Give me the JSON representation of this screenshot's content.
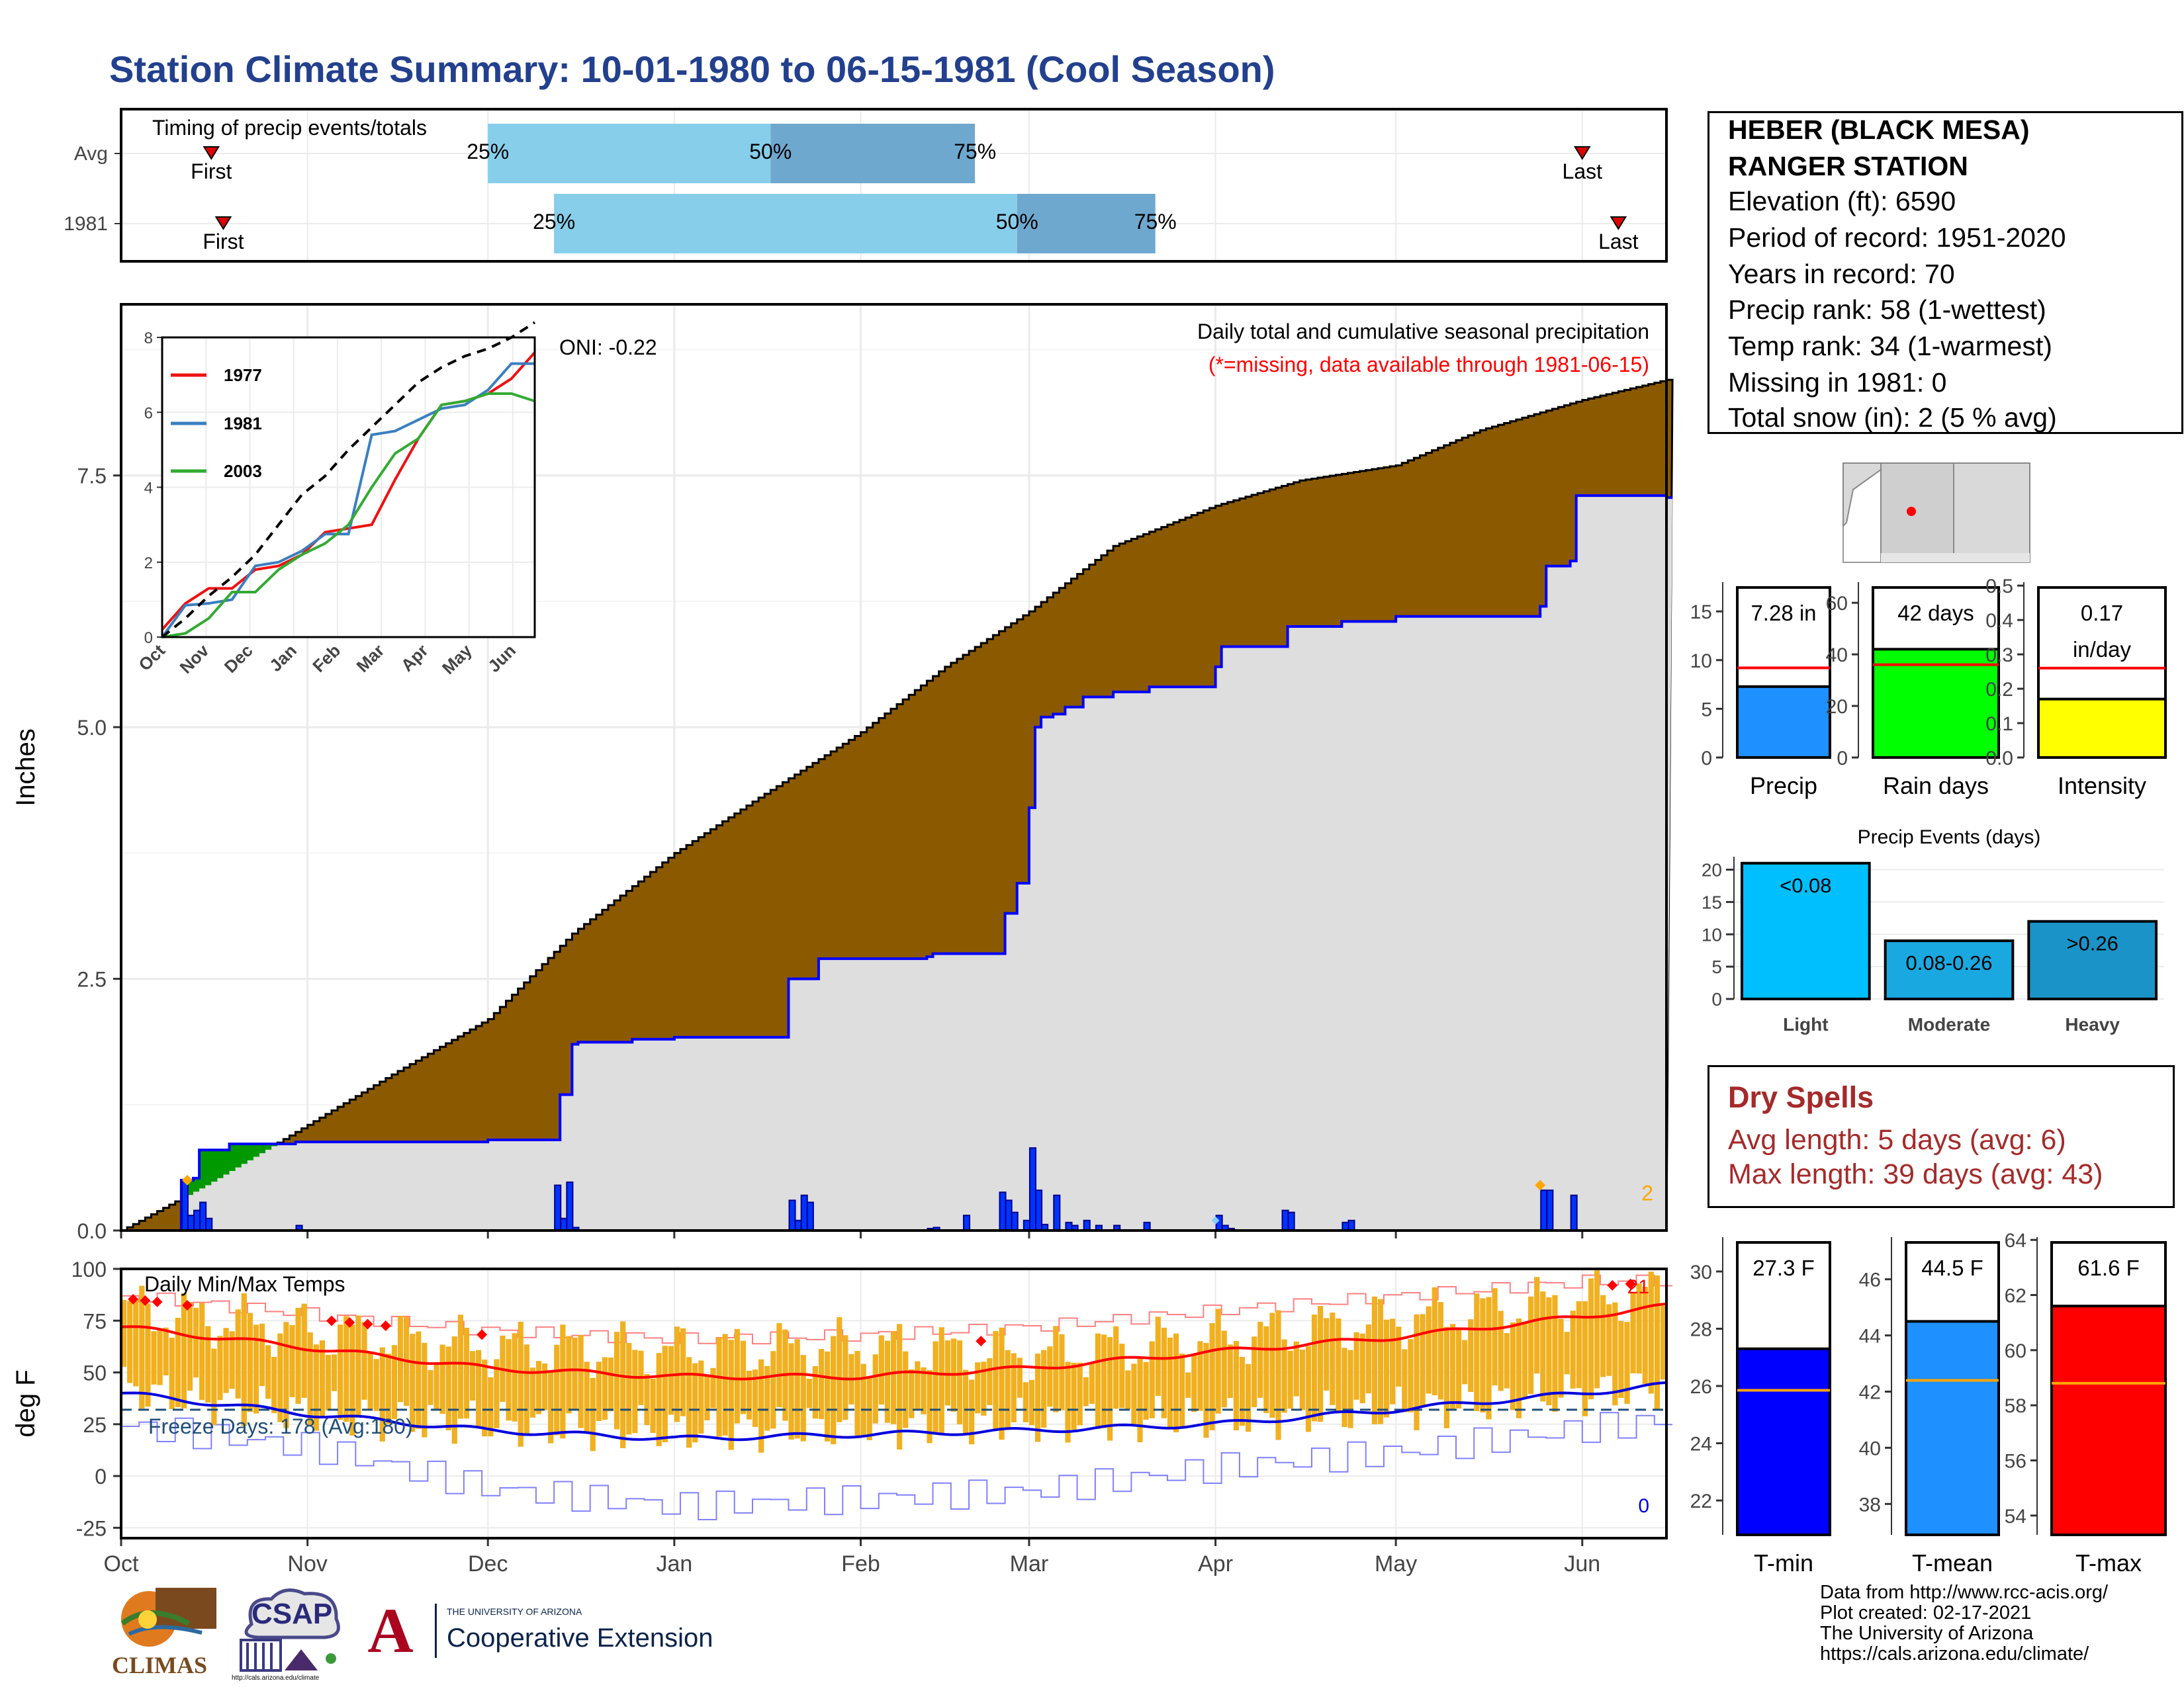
{
  "title": "Station Climate Summary: 10-01-1980 to 06-15-1981 (Cool Season)",
  "station": {
    "name_line1": "HEBER (BLACK MESA)",
    "name_line2": "RANGER STATION",
    "elevation": "Elevation (ft): 6590",
    "period": "Period of record: 1951-2020",
    "years": "Years in record: 70",
    "precip_rank": "Precip rank: 58 (1-wettest)",
    "temp_rank": "Temp rank: 34 (1-warmest)",
    "missing": "Missing in 1981: 0",
    "snow": "Total snow (in): 2 (5 % avg)"
  },
  "dry_spells": {
    "title": "Dry Spells",
    "avg": "Avg length: 5 days (avg: 6)",
    "max": "Max length: 39 days (avg: 43)"
  },
  "credits": {
    "line1": "Data from http://www.rcc-acis.org/",
    "line2": "Plot created: 02-17-2021",
    "line3": "The University of Arizona",
    "line4": "https://cals.arizona.edu/climate/"
  },
  "logos": {
    "climas": "CLIMAS",
    "csap": "CSAP",
    "csap_url": "http://cals.arizona.edu/climate",
    "ua_small": "THE UNIVERSITY OF ARIZONA",
    "ua_big": "Cooperative Extension",
    "ua_letter": "A"
  },
  "colors": {
    "title": "#23408e",
    "avg_cum": "#8b5a00",
    "obs_cum": "#0000ff",
    "obs_fill": "#dedede",
    "band_light": "#87ceeb",
    "band_dark": "#6fa8cf",
    "temp_bars": "#f0b020",
    "tmax_line": "#ff0000",
    "tmin_line": "#0000dd",
    "dry": "#a52a2a"
  },
  "chart_data": [
    {
      "id": "timing",
      "type": "range_bar",
      "title": "Timing of precip events/totals",
      "rows": [
        {
          "label": "Avg",
          "first": "1980-10-16",
          "q25": "1980-12-01",
          "q50": "1981-01-17",
          "q75": "1981-02-20",
          "last": "1981-06-01",
          "first_label": "First",
          "q25_label": "25%",
          "q50_label": "50%",
          "q75_label": "75%",
          "last_label": "Last"
        },
        {
          "label": "1981",
          "first": "1980-10-18",
          "q25": "1980-12-12",
          "q50": "1981-02-27",
          "q75": "1981-03-22",
          "last": "1981-06-07",
          "first_label": "First",
          "q25_label": "25%",
          "q50_label": "50%",
          "q75_label": "75%",
          "last_label": "Last"
        }
      ]
    },
    {
      "id": "precip",
      "type": "area",
      "title": "Daily total and cumulative seasonal precipitation",
      "subtitle": "(*=missing, data available through 1981-06-15)",
      "annotation": "ONI: -0.22",
      "ylabel": "Inches",
      "ylim": [
        0,
        9.2
      ],
      "yticks": [
        0.0,
        2.5,
        5.0,
        7.5
      ],
      "ytick_labels": [
        "0.0",
        "2.5",
        "5.0",
        "7.5"
      ],
      "snow_total_label": "2",
      "avg_cumulative": {
        "dates": [
          "1980-10-01",
          "1980-10-15",
          "1980-11-01",
          "1980-11-15",
          "1980-12-01",
          "1980-12-15",
          "1981-01-01",
          "1981-01-15",
          "1981-02-01",
          "1981-02-15",
          "1981-03-01",
          "1981-03-15",
          "1981-04-01",
          "1981-04-15",
          "1981-05-01",
          "1981-05-15",
          "1981-06-01",
          "1981-06-15"
        ],
        "values": [
          0.0,
          0.45,
          1.05,
          1.55,
          2.1,
          2.95,
          3.75,
          4.3,
          4.95,
          5.6,
          6.15,
          6.8,
          7.2,
          7.45,
          7.6,
          7.95,
          8.25,
          8.45
        ]
      },
      "obs_cumulative": {
        "dates": [
          "1980-10-01",
          "1980-10-10",
          "1980-10-11",
          "1980-10-13",
          "1980-10-14",
          "1980-10-15",
          "1980-10-18",
          "1980-10-19",
          "1980-10-30",
          "1980-11-30",
          "1980-12-01",
          "1980-12-12",
          "1980-12-13",
          "1980-12-14",
          "1980-12-15",
          "1980-12-16",
          "1980-12-25",
          "1981-01-01",
          "1981-01-02",
          "1981-01-20",
          "1981-01-25",
          "1981-02-01",
          "1981-02-12",
          "1981-02-13",
          "1981-02-24",
          "1981-02-25",
          "1981-02-27",
          "1981-03-01",
          "1981-03-02",
          "1981-03-03",
          "1981-03-05",
          "1981-03-07",
          "1981-03-10",
          "1981-03-15",
          "1981-03-20",
          "1981-03-21",
          "1981-03-31",
          "1981-04-01",
          "1981-04-02",
          "1981-04-12",
          "1981-04-13",
          "1981-04-21",
          "1981-04-22",
          "1981-05-01",
          "1981-05-02",
          "1981-05-25",
          "1981-05-26",
          "1981-05-30",
          "1981-05-31",
          "1981-06-15"
        ],
        "values": [
          0.0,
          0.0,
          0.5,
          0.52,
          0.8,
          0.8,
          0.8,
          0.86,
          0.88,
          0.88,
          0.9,
          0.9,
          1.35,
          1.35,
          1.85,
          1.87,
          1.9,
          1.92,
          1.92,
          2.5,
          2.7,
          2.7,
          2.72,
          2.75,
          2.75,
          3.15,
          3.45,
          4.2,
          5.0,
          5.1,
          5.13,
          5.2,
          5.3,
          5.35,
          5.35,
          5.4,
          5.4,
          5.6,
          5.8,
          5.8,
          6.0,
          6.0,
          6.05,
          6.1,
          6.1,
          6.2,
          6.6,
          6.65,
          7.3,
          7.28
        ]
      },
      "daily_precip": {
        "dates": [
          "1980-10-11",
          "1980-10-12",
          "1980-10-13",
          "1980-10-14",
          "1980-10-15",
          "1980-10-30",
          "1980-12-12",
          "1980-12-13",
          "1980-12-14",
          "1980-12-15",
          "1981-01-20",
          "1981-01-21",
          "1981-01-22",
          "1981-01-23",
          "1981-02-12",
          "1981-02-13",
          "1981-02-18",
          "1981-02-24",
          "1981-02-25",
          "1981-02-26",
          "1981-02-28",
          "1981-03-01",
          "1981-03-02",
          "1981-03-03",
          "1981-03-05",
          "1981-03-07",
          "1981-03-08",
          "1981-03-10",
          "1981-03-12",
          "1981-03-15",
          "1981-03-20",
          "1981-04-01",
          "1981-04-02",
          "1981-04-03",
          "1981-04-12",
          "1981-04-13",
          "1981-04-22",
          "1981-04-23",
          "1981-05-25",
          "1981-05-26",
          "1981-05-30"
        ],
        "values": [
          0.5,
          0.15,
          0.2,
          0.28,
          0.12,
          0.05,
          0.45,
          0.12,
          0.48,
          0.03,
          0.3,
          0.1,
          0.35,
          0.28,
          0.02,
          0.03,
          0.15,
          0.38,
          0.3,
          0.18,
          0.1,
          0.82,
          0.4,
          0.06,
          0.35,
          0.08,
          0.05,
          0.1,
          0.05,
          0.05,
          0.08,
          0.15,
          0.05,
          0.02,
          0.2,
          0.18,
          0.08,
          0.1,
          0.4,
          0.4,
          0.35
        ]
      },
      "x_months": [
        "Oct",
        "Nov",
        "Dec",
        "Jan",
        "Feb",
        "Mar",
        "Apr",
        "May",
        "Jun"
      ]
    },
    {
      "id": "inset",
      "type": "line",
      "ylim": [
        0,
        8
      ],
      "yticks": [
        0,
        2,
        4,
        6,
        8
      ],
      "xtick_labels": [
        "Oct",
        "Nov",
        "Dec",
        "Jan",
        "Feb",
        "Mar",
        "Apr",
        "May",
        "Jun"
      ],
      "series": [
        {
          "name": "1977",
          "color": "#ee1111",
          "values": [
            0.2,
            0.9,
            1.3,
            1.3,
            1.8,
            1.9,
            2.2,
            2.8,
            2.9,
            3.0,
            4.2,
            5.3,
            6.2,
            6.3,
            6.5,
            6.9,
            7.6
          ]
        },
        {
          "name": "1981",
          "color": "#3a7fc0",
          "values": [
            0.0,
            0.85,
            0.9,
            1.0,
            1.9,
            2.0,
            2.3,
            2.75,
            2.75,
            5.4,
            5.5,
            5.8,
            6.1,
            6.2,
            6.6,
            7.3,
            7.3
          ]
        },
        {
          "name": "2003",
          "color": "#33aa33",
          "values": [
            0.0,
            0.1,
            0.5,
            1.2,
            1.2,
            1.8,
            2.2,
            2.5,
            3.0,
            4.0,
            4.9,
            5.3,
            6.2,
            6.3,
            6.5,
            6.5,
            6.3
          ]
        },
        {
          "name": "",
          "color": "#000000",
          "dashed": true,
          "values": [
            0.0,
            0.5,
            1.1,
            1.6,
            2.2,
            3.0,
            3.8,
            4.3,
            5.0,
            5.6,
            6.2,
            6.8,
            7.2,
            7.5,
            7.7,
            8.0,
            8.4
          ]
        }
      ]
    },
    {
      "id": "temps",
      "type": "line",
      "title": "Daily Min/Max Temps",
      "freeze_label": "Freeze Days: 178 (Avg:180)",
      "ylabel": "deg F",
      "ylim": [
        -30,
        100
      ],
      "yticks": [
        -25,
        0,
        25,
        50,
        75,
        100
      ],
      "ytick_labels": [
        "-25",
        "0",
        "25",
        "50",
        "75",
        "100"
      ],
      "freeze_line": 32,
      "record_high_count": "21",
      "record_low_count": "0",
      "x_months": [
        "Oct",
        "Nov",
        "Dec",
        "Jan",
        "Feb",
        "Mar",
        "Apr",
        "May",
        "Jun"
      ],
      "avg_tmax": {
        "dates": [
          "1980-10-01",
          "1980-11-01",
          "1980-12-01",
          "1981-01-01",
          "1981-02-01",
          "1981-03-01",
          "1981-04-01",
          "1981-05-01",
          "1981-06-01",
          "1981-06-15"
        ],
        "values": [
          72,
          62,
          52,
          48,
          48,
          52,
          60,
          67,
          77,
          82
        ]
      },
      "avg_tmin": {
        "dates": [
          "1980-10-01",
          "1980-11-01",
          "1980-12-01",
          "1981-01-01",
          "1981-02-01",
          "1981-03-01",
          "1981-04-01",
          "1981-05-01",
          "1981-06-01",
          "1981-06-15"
        ],
        "values": [
          40,
          30,
          22,
          18,
          20,
          22,
          25,
          32,
          40,
          44
        ]
      },
      "record_high": {
        "dates": [
          "1980-10-01",
          "1980-11-01",
          "1980-12-01",
          "1981-01-01",
          "1981-02-01",
          "1981-03-01",
          "1981-04-01",
          "1981-05-01",
          "1981-06-01",
          "1981-06-15"
        ],
        "values": [
          87,
          78,
          70,
          66,
          68,
          72,
          80,
          87,
          94,
          95
        ]
      },
      "record_low": {
        "dates": [
          "1980-10-01",
          "1980-11-01",
          "1980-12-01",
          "1981-01-01",
          "1981-02-01",
          "1981-03-01",
          "1981-04-01",
          "1981-05-01",
          "1981-06-01",
          "1981-06-15"
        ],
        "values": [
          20,
          10,
          -10,
          -18,
          -14,
          -10,
          2,
          10,
          22,
          26
        ]
      },
      "obs_tmax": {
        "dates": [
          "1980-10-01",
          "1980-11-01",
          "1980-12-01",
          "1981-01-01",
          "1981-02-01",
          "1981-03-01",
          "1981-04-01",
          "1981-05-01",
          "1981-06-01",
          "1981-06-15"
        ],
        "values": [
          80,
          70,
          62,
          60,
          62,
          58,
          66,
          75,
          85,
          88
        ]
      },
      "obs_tmin": {
        "dates": [
          "1980-10-01",
          "1980-11-01",
          "1980-12-01",
          "1981-01-01",
          "1981-02-01",
          "1981-03-01",
          "1981-04-01",
          "1981-05-01",
          "1981-06-01",
          "1981-06-15"
        ],
        "values": [
          42,
          30,
          25,
          22,
          24,
          26,
          28,
          32,
          40,
          44
        ]
      }
    },
    {
      "id": "precip_totals",
      "type": "bar",
      "panels": [
        {
          "name": "Precip",
          "value": 7.28,
          "avg": 9.2,
          "label": "7.28 in",
          "ylim": [
            0,
            18
          ],
          "yticks": [
            0,
            5,
            10,
            15
          ],
          "color": "#1e90ff"
        },
        {
          "name": "Rain days",
          "value": 42,
          "avg": 36,
          "label": "42 days",
          "ylim": [
            0,
            68
          ],
          "yticks": [
            0,
            20,
            40,
            60
          ],
          "color": "#00ff00"
        },
        {
          "name": "Intensity",
          "value": 0.17,
          "avg": 0.26,
          "label_line1": "0.17",
          "label_line2": "in/day",
          "ylim": [
            0,
            0.51
          ],
          "yticks": [
            0.0,
            0.1,
            0.2,
            0.3,
            0.4,
            0.5
          ],
          "ytick_labels": [
            "0.0",
            "0.1",
            "0.2",
            "0.3",
            "0.4",
            "0.5"
          ],
          "color": "#ffff00"
        }
      ]
    },
    {
      "id": "events",
      "type": "bar",
      "title": "Precip Events (days)",
      "categories": [
        "Light",
        "Moderate",
        "Heavy"
      ],
      "bar_labels": [
        "<0.08",
        "0.08-0.26",
        ">0.26"
      ],
      "values": [
        21,
        9,
        12
      ],
      "ylim": [
        0,
        22
      ],
      "yticks": [
        0,
        5,
        10,
        15,
        20
      ],
      "colors": [
        "#00bfff",
        "#1aa8e0",
        "#1a94c8"
      ]
    },
    {
      "id": "temp_totals",
      "type": "bar",
      "panels": [
        {
          "name": "T-min",
          "value": 27.3,
          "avg": 25.85,
          "label": "27.3 F",
          "ylim": [
            20.8,
            31.2
          ],
          "yticks": [
            22,
            24,
            26,
            28,
            30
          ],
          "color": "#0000ff"
        },
        {
          "name": "T-mean",
          "value": 44.5,
          "avg": 42.4,
          "label": "44.5 F",
          "ylim": [
            36.9,
            47.5
          ],
          "yticks": [
            38,
            40,
            42,
            44,
            46
          ],
          "color": "#1e90ff"
        },
        {
          "name": "T-max",
          "value": 61.6,
          "avg": 58.8,
          "label": "61.6 F",
          "ylim": [
            53.3,
            64.1
          ],
          "yticks": [
            54,
            56,
            58,
            60,
            62,
            64
          ],
          "color": "#ff0000"
        }
      ]
    }
  ]
}
